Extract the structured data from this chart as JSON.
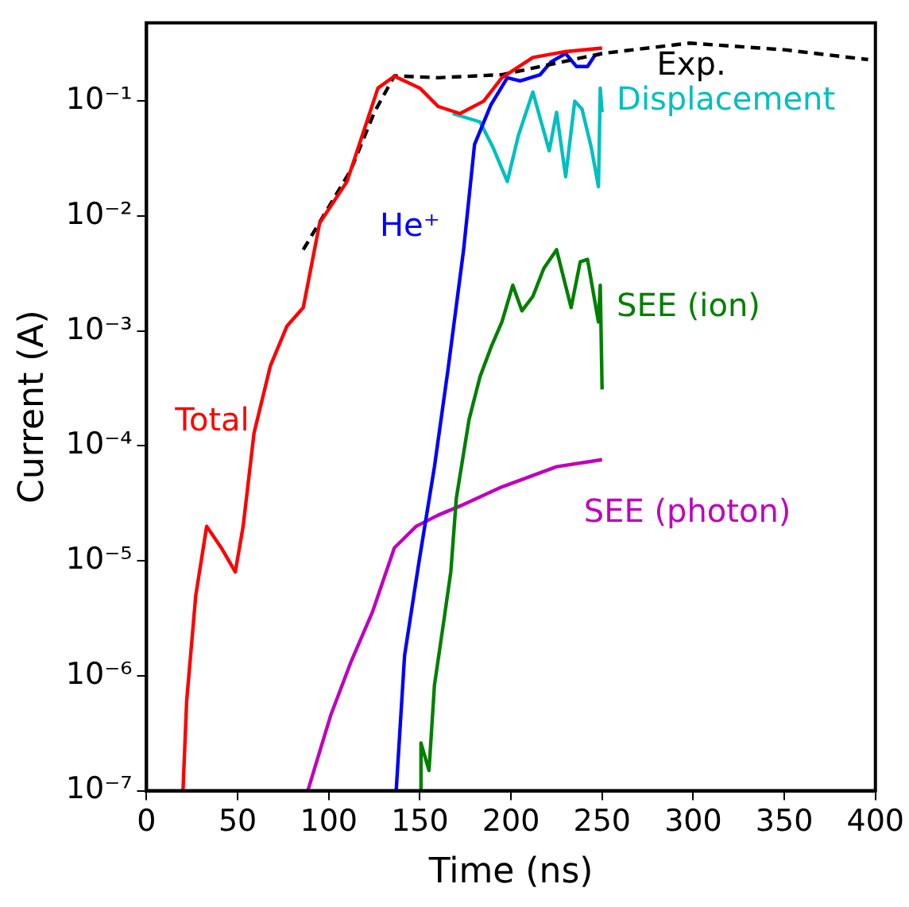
{
  "chart_data": {
    "type": "line",
    "xlabel": "Time (ns)",
    "ylabel": "Current (A)",
    "log": "y",
    "grid": false,
    "legend": false,
    "marker": "none",
    "xlim": [
      0,
      400
    ],
    "xticks": [
      0,
      50,
      100,
      150,
      200,
      250,
      300,
      350,
      400
    ],
    "ylim": [
      1e-07,
      0.48
    ],
    "yticks": [
      {
        "value": 1e-07,
        "label": "10⁻⁷"
      },
      {
        "value": 1e-06,
        "label": "10⁻⁶"
      },
      {
        "value": 1e-05,
        "label": "10⁻⁵"
      },
      {
        "value": 0.0001,
        "label": "10⁻⁴"
      },
      {
        "value": 0.001,
        "label": "10⁻³"
      },
      {
        "value": 0.01,
        "label": "10⁻²"
      },
      {
        "value": 0.1,
        "label": "10⁻¹"
      }
    ],
    "series": [
      {
        "name": "Total",
        "color": "#ff0000",
        "line_style": "solid",
        "x": [
          20,
          22,
          27,
          33,
          41,
          48.7,
          53,
          59,
          68,
          77,
          86,
          95,
          110,
          127,
          136,
          150,
          160,
          172,
          185,
          195,
          212,
          230,
          250
        ],
        "values": [
          1e-07,
          6e-07,
          5e-06,
          2e-05,
          1.3e-05,
          8e-06,
          2e-05,
          0.00013,
          0.0005,
          0.0011,
          0.0016,
          0.0087,
          0.02,
          0.13,
          0.165,
          0.13,
          0.09,
          0.078,
          0.1,
          0.16,
          0.24,
          0.27,
          0.29
        ]
      },
      {
        "name": "Exp.",
        "color": "#000000",
        "line_style": "dashed",
        "x": [
          86,
          100,
          112,
          125,
          136,
          160,
          195,
          250,
          298,
          350,
          396
        ],
        "values": [
          0.0051,
          0.012,
          0.025,
          0.08,
          0.166,
          0.16,
          0.17,
          0.26,
          0.32,
          0.28,
          0.23
        ]
      },
      {
        "name": "He⁺",
        "color": "#0000ff",
        "line_style": "solid",
        "x": [
          137,
          141.6,
          149.6,
          158,
          165.5,
          174,
          180,
          189,
          198,
          205,
          216,
          222,
          230,
          236,
          242,
          246,
          250
        ],
        "values": [
          1e-07,
          1.5e-06,
          1e-05,
          6.6e-05,
          0.00047,
          0.0051,
          0.042,
          0.093,
          0.16,
          0.15,
          0.17,
          0.22,
          0.26,
          0.2,
          0.2,
          0.25,
          0.26
        ]
      },
      {
        "name": "Displacement",
        "color": "#00bfbf",
        "line_style": "solid",
        "x": [
          168,
          183,
          190,
          198,
          204,
          212,
          221,
          225,
          230,
          235,
          239,
          244,
          248,
          249,
          250
        ],
        "values": [
          0.078,
          0.066,
          0.04,
          0.02,
          0.05,
          0.12,
          0.037,
          0.08,
          0.022,
          0.1,
          0.085,
          0.04,
          0.018,
          0.13,
          0.08
        ]
      },
      {
        "name": "SEE (ion)",
        "color": "#007f00",
        "line_style": "solid",
        "x": [
          150,
          150.6,
          155,
          158,
          163,
          167,
          170,
          177,
          183,
          189,
          195,
          201,
          206,
          212,
          218,
          225,
          233,
          238,
          242,
          248,
          249,
          250
        ],
        "values": [
          1e-07,
          2.6e-07,
          1.5e-07,
          8.3e-07,
          2.9e-06,
          8.1e-06,
          3.5e-05,
          0.00017,
          0.0004,
          0.00072,
          0.0012,
          0.0025,
          0.0015,
          0.002,
          0.0035,
          0.0051,
          0.0016,
          0.004,
          0.0042,
          0.0012,
          0.0025,
          0.00031
        ]
      },
      {
        "name": "SEE (photon)",
        "color": "#bf00bf",
        "line_style": "solid",
        "x": [
          88.5,
          101,
          112,
          124,
          136,
          148,
          160,
          172,
          195,
          225,
          250
        ],
        "values": [
          1e-07,
          4.5e-07,
          1.3e-06,
          3.6e-06,
          1.3e-05,
          2e-05,
          2.5e-05,
          3e-05,
          4.4e-05,
          6.6e-05,
          7.6e-05
        ]
      }
    ]
  }
}
